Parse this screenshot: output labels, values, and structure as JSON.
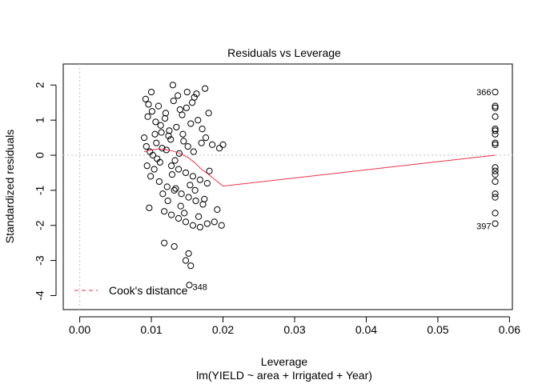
{
  "chart_data": {
    "type": "scatter",
    "title": "Residuals vs Leverage",
    "xlabel": "Leverage",
    "subtitle": "lm(YIELD ~ area + Irrigated + Year)",
    "ylabel": "Standardized residuals",
    "xlim": [
      -0.0023,
      0.0604
    ],
    "ylim": [
      -4.4,
      2.6
    ],
    "xticks": [
      0.0,
      0.01,
      0.02,
      0.03,
      0.04,
      0.05,
      0.06
    ],
    "xtick_labels": [
      "0.00",
      "0.01",
      "0.02",
      "0.03",
      "0.04",
      "0.05",
      "0.06"
    ],
    "yticks": [
      -4,
      -3,
      -2,
      -1,
      0,
      1,
      2
    ],
    "ytick_labels": [
      "-4",
      "-3",
      "-2",
      "-1",
      "0",
      "1",
      "2"
    ],
    "reference_lines": {
      "x": 0,
      "y": 0,
      "style": "dotted",
      "color": "#c8c8c8"
    },
    "point_style": {
      "shape": "open-circle",
      "color": "#000000"
    },
    "points": [
      [
        0.01,
        1.8
      ],
      [
        0.013,
        2.0
      ],
      [
        0.015,
        1.8
      ],
      [
        0.0175,
        1.9
      ],
      [
        0.016,
        1.65
      ],
      [
        0.011,
        1.4
      ],
      [
        0.014,
        1.3
      ],
      [
        0.012,
        1.2
      ],
      [
        0.0095,
        1.1
      ],
      [
        0.018,
        1.2
      ],
      [
        0.0165,
        1.0
      ],
      [
        0.0155,
        0.9
      ],
      [
        0.0135,
        0.8
      ],
      [
        0.0125,
        0.7
      ],
      [
        0.0105,
        0.6
      ],
      [
        0.009,
        0.5
      ],
      [
        0.0145,
        0.4
      ],
      [
        0.017,
        0.35
      ],
      [
        0.0185,
        0.3
      ],
      [
        0.0195,
        0.2
      ],
      [
        0.02,
        0.3
      ],
      [
        0.0115,
        0.2
      ],
      [
        0.0098,
        0.1
      ],
      [
        0.0102,
        0.0
      ],
      [
        0.0108,
        -0.1
      ],
      [
        0.0112,
        -0.2
      ],
      [
        0.0128,
        -0.3
      ],
      [
        0.0138,
        -0.4
      ],
      [
        0.0148,
        -0.5
      ],
      [
        0.0158,
        -0.6
      ],
      [
        0.0168,
        -0.7
      ],
      [
        0.0178,
        -0.8
      ],
      [
        0.0122,
        -0.9
      ],
      [
        0.0132,
        -1.0
      ],
      [
        0.0142,
        -1.1
      ],
      [
        0.0152,
        -1.2
      ],
      [
        0.0162,
        -1.3
      ],
      [
        0.0172,
        -1.4
      ],
      [
        0.0097,
        -1.5
      ],
      [
        0.0118,
        -1.6
      ],
      [
        0.0128,
        -1.7
      ],
      [
        0.0138,
        -1.8
      ],
      [
        0.0148,
        -1.9
      ],
      [
        0.0158,
        -2.0
      ],
      [
        0.0168,
        -2.05
      ],
      [
        0.0178,
        -1.95
      ],
      [
        0.0188,
        -1.9
      ],
      [
        0.0198,
        -2.0
      ],
      [
        0.0192,
        -1.55
      ],
      [
        0.0118,
        -2.5
      ],
      [
        0.0132,
        -2.6
      ],
      [
        0.0152,
        -2.8
      ],
      [
        0.0148,
        -3.0
      ],
      [
        0.0155,
        -3.15
      ],
      [
        0.0153,
        -3.7
      ],
      [
        0.0092,
        1.6
      ],
      [
        0.0096,
        1.45
      ],
      [
        0.0101,
        1.25
      ],
      [
        0.0106,
        0.95
      ],
      [
        0.0113,
        0.85
      ],
      [
        0.0119,
        1.05
      ],
      [
        0.0124,
        0.55
      ],
      [
        0.0131,
        1.55
      ],
      [
        0.0137,
        1.7
      ],
      [
        0.0143,
        1.15
      ],
      [
        0.0149,
        1.35
      ],
      [
        0.0157,
        1.5
      ],
      [
        0.0163,
        1.75
      ],
      [
        0.0171,
        0.75
      ],
      [
        0.0176,
        0.5
      ],
      [
        0.0094,
        -0.3
      ],
      [
        0.0099,
        -0.6
      ],
      [
        0.0104,
        -0.4
      ],
      [
        0.0111,
        -0.75
      ],
      [
        0.0116,
        -1.1
      ],
      [
        0.0123,
        -1.3
      ],
      [
        0.0129,
        -0.55
      ],
      [
        0.0134,
        -0.95
      ],
      [
        0.0141,
        -1.45
      ],
      [
        0.0146,
        -1.65
      ],
      [
        0.0154,
        -0.85
      ],
      [
        0.0161,
        -1.0
      ],
      [
        0.0166,
        -1.75
      ],
      [
        0.0174,
        -1.25
      ],
      [
        0.0181,
        -0.45
      ],
      [
        0.0093,
        0.25
      ],
      [
        0.0107,
        0.35
      ],
      [
        0.0114,
        0.65
      ],
      [
        0.0121,
        0.15
      ],
      [
        0.0127,
        0.45
      ],
      [
        0.0133,
        -0.15
      ],
      [
        0.0139,
        0.05
      ],
      [
        0.0144,
        0.6
      ],
      [
        0.0151,
        0.25
      ],
      [
        0.0159,
        0.1
      ],
      [
        0.058,
        1.8
      ],
      [
        0.058,
        1.4
      ],
      [
        0.058,
        1.35
      ],
      [
        0.058,
        1.1
      ],
      [
        0.058,
        0.75
      ],
      [
        0.058,
        0.7
      ],
      [
        0.058,
        0.6
      ],
      [
        0.058,
        0.35
      ],
      [
        0.058,
        0.3
      ],
      [
        0.058,
        -0.35
      ],
      [
        0.058,
        -0.45
      ],
      [
        0.058,
        -0.55
      ],
      [
        0.058,
        -0.75
      ],
      [
        0.058,
        -1.1
      ],
      [
        0.058,
        -1.2
      ],
      [
        0.058,
        -1.65
      ],
      [
        0.058,
        -1.95
      ]
    ],
    "labeled_points": [
      {
        "label": "366",
        "x": 0.058,
        "y": 1.8,
        "side": "left"
      },
      {
        "label": "397",
        "x": 0.058,
        "y": -1.95,
        "side": "left-below"
      },
      {
        "label": "348",
        "x": 0.0153,
        "y": -3.7,
        "side": "right"
      }
    ],
    "smooth_line": {
      "color": "#e8314a",
      "x": [
        0.009,
        0.01,
        0.011,
        0.012,
        0.013,
        0.014,
        0.015,
        0.016,
        0.017,
        0.018,
        0.02,
        0.058
      ],
      "y": [
        0.1,
        0.15,
        0.18,
        0.16,
        0.12,
        0.05,
        -0.05,
        -0.2,
        -0.4,
        -0.55,
        -0.88,
        0.0
      ]
    },
    "legend": {
      "position": "bottom-left",
      "entries": [
        {
          "label": "Cook's distance",
          "color": "#e8314a",
          "style": "dashed"
        }
      ]
    }
  }
}
